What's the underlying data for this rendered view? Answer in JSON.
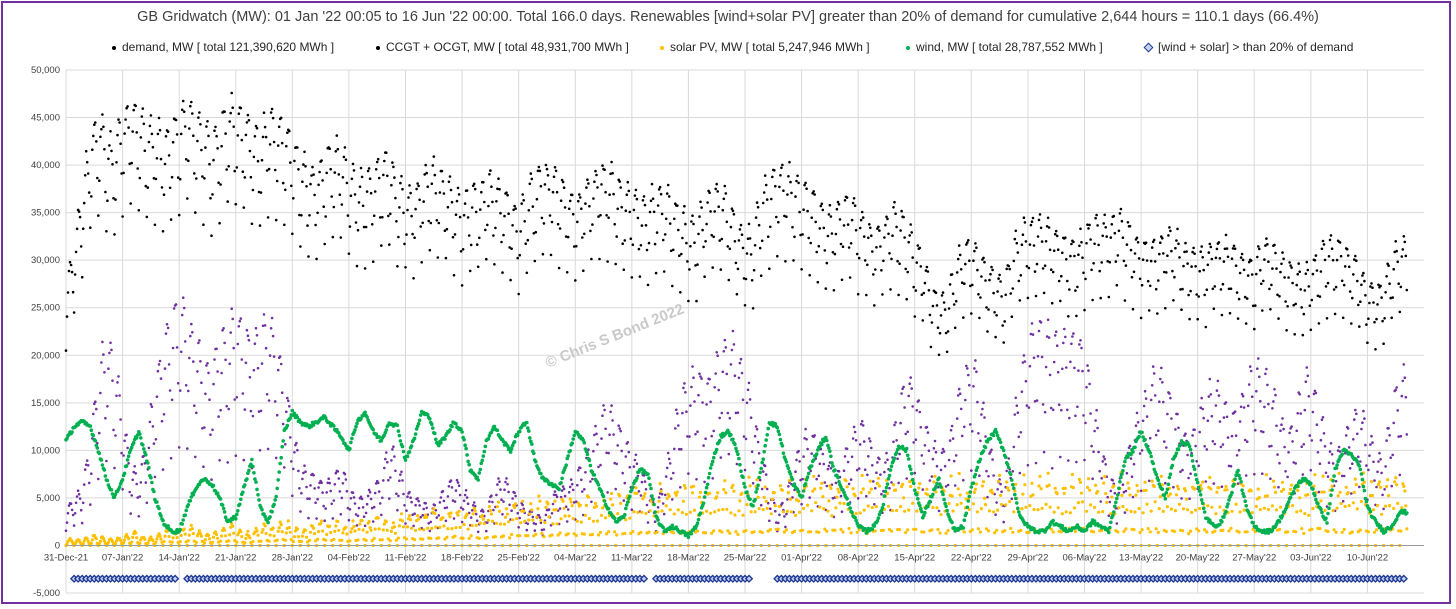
{
  "chart_data": {
    "type": "scatter",
    "title": "GB Gridwatch (MW):   01 Jan '22 00:05 to 16 Jun '22 00:00.  Total 166.0 days.  Renewables [wind+solar PV] greater than 20% of demand for cumulative 2,644 hours = 110.1 days (66.4%)",
    "watermark": "© Chris S Bond 2022",
    "xlabel": "",
    "ylabel": "",
    "ylim": [
      -5000,
      50000
    ],
    "xlim": [
      "31-Dec-21",
      "17-Jun-22"
    ],
    "grid": true,
    "legend_position": "top",
    "y_ticks": [
      "50,000",
      "45,000",
      "40,000",
      "35,000",
      "30,000",
      "25,000",
      "20,000",
      "15,000",
      "10,000",
      "5,000",
      "0",
      "-5,000"
    ],
    "x_ticks": [
      "31-Dec-21",
      "07-Jan'22",
      "14-Jan'22",
      "21-Jan'22",
      "28-Jan'22",
      "04-Feb'22",
      "11-Feb'22",
      "18-Feb'22",
      "25-Feb'22",
      "04-Mar'22",
      "11-Mar'22",
      "18-Mar'22",
      "25-Mar'22",
      "01-Apr'22",
      "08-Apr'22",
      "15-Apr'22",
      "22-Apr'22",
      "29-Apr'22",
      "06-May'22",
      "13-May'22",
      "20-May'22",
      "27-May'22",
      "03-Jun'22",
      "10-Jun'22"
    ],
    "series": [
      {
        "name": "demand, MW  [ total 121,390,620 MWh ]",
        "color": "#000000",
        "marker": "dot",
        "day_values": [
          24000,
          28000,
          33000,
          38000,
          40000,
          38000,
          37000,
          40000,
          41000,
          40000,
          39000,
          39000,
          38000,
          39000,
          40000,
          41000,
          40000,
          39000,
          38000,
          39000,
          41000,
          41000,
          40000,
          39000,
          38000,
          40000,
          40000,
          39000,
          38000,
          36000,
          35000,
          35000,
          36000,
          37000,
          37000,
          35000,
          34000,
          34000,
          35000,
          36000,
          36000,
          34000,
          33000,
          33000,
          34000,
          35000,
          35000,
          34000,
          33000,
          32000,
          33000,
          33000,
          34000,
          34000,
          33000,
          32000,
          31000,
          33000,
          34000,
          35000,
          35000,
          34000,
          33000,
          32000,
          33000,
          34000,
          35000,
          35000,
          34000,
          33000,
          33000,
          32000,
          32000,
          33000,
          33000,
          32000,
          31000,
          30000,
          30000,
          32000,
          33000,
          33000,
          32000,
          30000,
          29000,
          29000,
          33000,
          34000,
          35000,
          35000,
          34000,
          33000,
          33000,
          32000,
          31000,
          31000,
          32000,
          32000,
          31000,
          30000,
          29000,
          30000,
          31000,
          31000,
          30000,
          28000,
          27000,
          24000,
          23000,
          23000,
          26000,
          28000,
          28000,
          27000,
          26000,
          25000,
          24000,
          28000,
          29000,
          30000,
          30000,
          30000,
          29000,
          29000,
          28000,
          28000,
          29000,
          30000,
          30000,
          30000,
          31000,
          30000,
          29000,
          28000,
          28000,
          28000,
          29000,
          29000,
          28000,
          27000,
          27000,
          27000,
          28000,
          28000,
          28000,
          27000,
          27000,
          26000,
          28000,
          28000,
          27000,
          26000,
          26000,
          25000,
          26000,
          27000,
          28000,
          28000,
          28000,
          27000,
          26000,
          24000,
          24000,
          24000,
          27000,
          28000
        ]
      },
      {
        "name": "CCGT + OCGT, MW  [ total 48,931,700 MWh ]",
        "color": "#7030a0",
        "marker": "dot",
        "day_values": [
          3000,
          4000,
          5000,
          9000,
          15000,
          18000,
          16000,
          12000,
          7000,
          6000,
          9000,
          14000,
          17000,
          20000,
          21000,
          20000,
          18000,
          16000,
          15000,
          18000,
          19000,
          20000,
          19000,
          17000,
          19000,
          20000,
          18000,
          15000,
          10000,
          7000,
          6000,
          6000,
          5000,
          6000,
          7000,
          5000,
          4000,
          4000,
          5000,
          6000,
          9000,
          7000,
          5000,
          4000,
          4000,
          3000,
          4000,
          5000,
          6000,
          5000,
          4000,
          3000,
          3000,
          5000,
          6000,
          5000,
          4000,
          3000,
          3000,
          2000,
          4000,
          5000,
          5000,
          6000,
          7000,
          9000,
          11000,
          12000,
          11000,
          9000,
          8000,
          7000,
          5000,
          3000,
          6000,
          9000,
          13000,
          14000,
          15000,
          14000,
          15000,
          17000,
          18000,
          17000,
          15000,
          12000,
          8000,
          5000,
          3000,
          4000,
          7000,
          9000,
          10000,
          9000,
          8000,
          6000,
          7000,
          9000,
          11000,
          10000,
          8000,
          7000,
          8000,
          12000,
          15000,
          14000,
          11000,
          9000,
          8000,
          8000,
          12000,
          15000,
          16000,
          14000,
          10000,
          6000,
          5000,
          9000,
          15000,
          18000,
          19000,
          19000,
          18000,
          18000,
          18000,
          18000,
          17000,
          13000,
          9000,
          6000,
          5000,
          7000,
          10000,
          12000,
          14000,
          15000,
          14000,
          12000,
          10000,
          9000,
          11000,
          13000,
          14000,
          13000,
          11000,
          12000,
          14000,
          16000,
          15000,
          14000,
          12000,
          9000,
          11000,
          14000,
          15000,
          12000,
          9000,
          8000,
          9000,
          11000,
          12000,
          10000,
          8000,
          7000,
          12000,
          15000
        ]
      },
      {
        "name": "solar PV, MW  [ total 5,247,946 MWh ]",
        "color": "#ffc000",
        "marker": "dot",
        "day_peaks": [
          800,
          700,
          900,
          1200,
          1000,
          700,
          900,
          1300,
          1500,
          1100,
          900,
          1400,
          1800,
          1500,
          2000,
          2200,
          1800,
          1300,
          1600,
          2000,
          2400,
          1900,
          1500,
          2100,
          2500,
          2200,
          2800,
          2600,
          2000,
          1800,
          2400,
          2900,
          2500,
          3000,
          2300,
          2600,
          3100,
          2800,
          3300,
          3000,
          2500,
          3500,
          3800,
          3200,
          3600,
          4000,
          3500,
          3900,
          4200,
          3800,
          4500,
          4100,
          4600,
          4800,
          4200,
          5000,
          5200,
          4600,
          5400,
          5100,
          4800,
          5600,
          5800,
          5300,
          6000,
          5500,
          5900,
          6300,
          6100,
          5700,
          6400,
          6800,
          6200,
          6600,
          7000,
          6500,
          6900,
          7100,
          6700,
          6200,
          6800,
          7200,
          7000,
          6400,
          7300,
          7500,
          6900,
          7200,
          7600,
          7000,
          6600,
          7400,
          7700,
          7300,
          6800,
          7500,
          7800,
          7200,
          7600,
          7000,
          7400,
          7800,
          7500,
          7100,
          7700,
          7900,
          7300,
          7600,
          7000,
          7500,
          7800,
          7200,
          7600,
          7400,
          7000,
          7700,
          7900,
          7300,
          7600,
          7100,
          7500,
          7800,
          7400,
          7000,
          7600,
          7900,
          7500,
          7200,
          7700,
          7400,
          7800,
          7500,
          7100,
          7600,
          7900,
          7300,
          7700,
          7400,
          7000,
          7600,
          7800,
          7500,
          7200,
          7700,
          7900,
          7400,
          7600,
          7100,
          7500,
          7800,
          7300,
          7700,
          7500,
          7100,
          7600,
          7900,
          7400,
          7700,
          7200,
          7600,
          7800,
          7500,
          7300,
          7700,
          7900,
          8000
        ]
      },
      {
        "name": "wind, MW  [ total 28,787,552 MWh ]",
        "color": "#00b050",
        "marker": "dot",
        "day_values": [
          11000,
          12500,
          13000,
          12500,
          10000,
          7000,
          5000,
          7000,
          10000,
          12000,
          9000,
          5000,
          2500,
          1500,
          1500,
          4000,
          6000,
          7000,
          6500,
          5000,
          2500,
          3000,
          6000,
          9000,
          4000,
          2500,
          5000,
          12000,
          14000,
          13000,
          12500,
          13000,
          13500,
          12500,
          11500,
          10000,
          13000,
          14000,
          12000,
          11000,
          13000,
          12500,
          9000,
          11000,
          14000,
          13500,
          10500,
          11500,
          13000,
          12000,
          8000,
          7000,
          11000,
          12500,
          11000,
          10000,
          12000,
          13000,
          9000,
          7000,
          6500,
          6000,
          9000,
          12000,
          11000,
          8000,
          6000,
          4000,
          2500,
          3000,
          6000,
          8000,
          7500,
          3000,
          1500,
          2000,
          1500,
          1000,
          2000,
          5000,
          9000,
          11500,
          12000,
          10000,
          6000,
          4000,
          8000,
          13000,
          12500,
          9000,
          6500,
          5000,
          8000,
          10000,
          11500,
          8000,
          6000,
          4000,
          2000,
          1500,
          2000,
          4000,
          8000,
          10500,
          10000,
          6000,
          3000,
          5000,
          7000,
          3500,
          1500,
          2000,
          6000,
          9000,
          11000,
          12000,
          10000,
          7000,
          3000,
          2000,
          1500,
          1500,
          2500,
          2000,
          1500,
          2000,
          1500,
          2500,
          2000,
          1500,
          5000,
          9000,
          10000,
          12000,
          10000,
          7000,
          5000,
          9000,
          11000,
          10500,
          6500,
          3000,
          2000,
          2500,
          5000,
          8000,
          4000,
          2000,
          1500,
          1500,
          2500,
          4000,
          6000,
          7000,
          6500,
          4000,
          2500,
          8000,
          10000,
          9500,
          8500,
          4000,
          2500,
          1500,
          2000,
          3500
        ]
      },
      {
        "name": "[wind + solar] > than 20% of demand",
        "color": "#1f3a93",
        "marker": "diamond",
        "y_value": -3500,
        "days_true": [
          1,
          2,
          3,
          4,
          5,
          6,
          7,
          8,
          9,
          10,
          11,
          12,
          13,
          15,
          16,
          17,
          18,
          19,
          20,
          21,
          22,
          23,
          24,
          25,
          26,
          27,
          28,
          29,
          30,
          31,
          32,
          33,
          34,
          35,
          36,
          37,
          38,
          39,
          40,
          41,
          42,
          43,
          44,
          45,
          46,
          47,
          48,
          49,
          50,
          51,
          52,
          53,
          54,
          55,
          56,
          57,
          58,
          59,
          60,
          61,
          62,
          63,
          64,
          65,
          66,
          67,
          68,
          69,
          70,
          71,
          73,
          74,
          75,
          76,
          77,
          78,
          79,
          80,
          81,
          82,
          83,
          84,
          88,
          89,
          90,
          91,
          92,
          93,
          94,
          95,
          96,
          97,
          98,
          99,
          100,
          101,
          102,
          103,
          104,
          105,
          106,
          107,
          108,
          109,
          110,
          111,
          112,
          113,
          114,
          115,
          116,
          117,
          118,
          119,
          120,
          121,
          122,
          123,
          124,
          125,
          126,
          127,
          128,
          129,
          130,
          131,
          132,
          133,
          134,
          135,
          136,
          137,
          138,
          139,
          140,
          141,
          142,
          143,
          144,
          145,
          146,
          147,
          148,
          149,
          150,
          151,
          152,
          153,
          154,
          155,
          156,
          157,
          158,
          159,
          160,
          161,
          162,
          163,
          164,
          165
        ]
      }
    ]
  }
}
